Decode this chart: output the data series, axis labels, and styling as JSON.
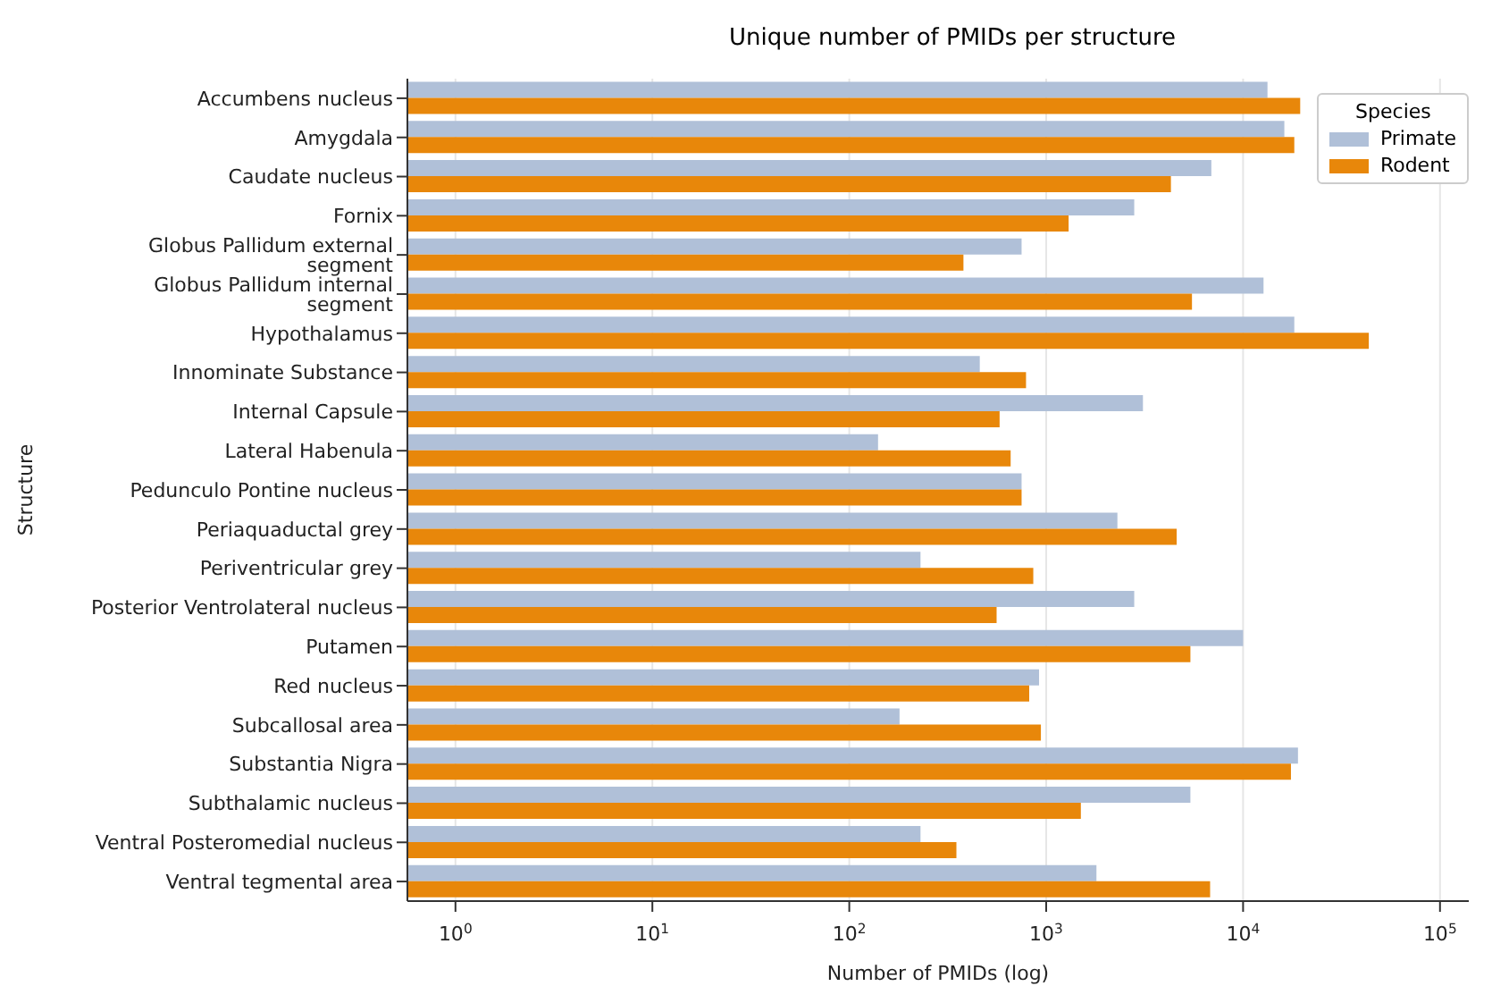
{
  "chart_data": {
    "type": "bar",
    "orientation": "horizontal",
    "title": "Unique number of PMIDs per structure",
    "xlabel": "Number of PMIDs (log)",
    "ylabel": "Structure",
    "legend_title": "Species",
    "legend": "top right",
    "grid": "x",
    "log": "x",
    "categories": [
      "Accumbens nucleus",
      "Amygdala",
      "Caudate nucleus",
      "Fornix",
      "Globus Pallidum external segment",
      "Globus Pallidum internal segment",
      "Hypothalamus",
      "Innominate Substance",
      "Internal Capsule",
      "Lateral Habenula",
      "Pedunculo Pontine nucleus",
      "Periaquaductal grey",
      "Periventricular grey",
      "Posterior Ventrolateral nucleus",
      "Putamen",
      "Red nucleus",
      "Subcallosal area",
      "Substantia Nigra",
      "Subthalamic nucleus",
      "Ventral Posteromedial nucleus",
      "Ventral tegmental area"
    ],
    "series": [
      {
        "name": "Primate",
        "color": "#b0c0d8",
        "values": [
          13300,
          16200,
          6900,
          2800,
          750,
          12700,
          18200,
          460,
          3100,
          140,
          750,
          2300,
          230,
          2800,
          10000,
          920,
          180,
          19000,
          5400,
          230,
          1800
        ]
      },
      {
        "name": "Rodent",
        "color": "#e8870a",
        "values": [
          19500,
          18200,
          4300,
          1300,
          380,
          5500,
          43500,
          790,
          580,
          660,
          750,
          4600,
          860,
          560,
          5400,
          820,
          940,
          17500,
          1500,
          350,
          6800
        ]
      }
    ],
    "xlim": [
      0.57,
      140000
    ],
    "xticks": [
      {
        "value": 1,
        "label": "10$^{0}$"
      },
      {
        "value": 10,
        "label": "10$^{1}$"
      },
      {
        "value": 100,
        "label": "10$^{2}$"
      },
      {
        "value": 1000,
        "label": "10$^{3}$"
      },
      {
        "value": 10000,
        "label": "10$^{4}$"
      },
      {
        "value": 100000,
        "label": "10$^{5}$"
      }
    ]
  }
}
